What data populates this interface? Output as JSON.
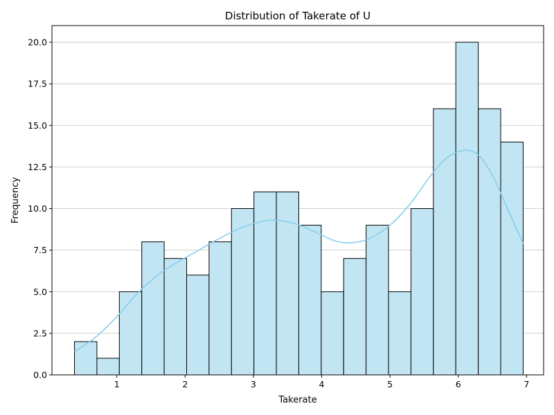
{
  "chart_data": {
    "type": "bar",
    "title": "Distribution of Takerate of U",
    "xlabel": "Takerate",
    "ylabel": "Frequency",
    "xlim": [
      0.05,
      7.25
    ],
    "ylim": [
      0,
      21
    ],
    "xticks": [
      1,
      2,
      3,
      4,
      5,
      6,
      7
    ],
    "yticks": [
      0.0,
      2.5,
      5.0,
      7.5,
      10.0,
      12.5,
      15.0,
      17.5,
      20.0
    ],
    "ytick_labels": [
      "0.0",
      "2.5",
      "5.0",
      "7.5",
      "10.0",
      "12.5",
      "15.0",
      "17.5",
      "20.0"
    ],
    "grid": "y",
    "bins": {
      "start": 0.38,
      "width": 0.3285,
      "counts": [
        2,
        1,
        5,
        8,
        7,
        6,
        8,
        10,
        11,
        11,
        9,
        5,
        7,
        9,
        5,
        10,
        16,
        20,
        16,
        14
      ]
    },
    "kde": {
      "x": [
        0.38,
        0.7,
        1.0,
        1.3,
        1.6,
        1.9,
        2.2,
        2.5,
        2.8,
        3.1,
        3.3,
        3.6,
        3.9,
        4.2,
        4.45,
        4.7,
        5.0,
        5.3,
        5.6,
        5.85,
        6.1,
        6.3,
        6.5,
        6.7,
        6.95
      ],
      "y": [
        1.4,
        2.3,
        3.5,
        4.9,
        6.0,
        6.8,
        7.5,
        8.2,
        8.8,
        9.2,
        9.3,
        9.1,
        8.6,
        8.05,
        7.95,
        8.2,
        9.0,
        10.3,
        12.0,
        13.1,
        13.5,
        13.2,
        12.0,
        10.2,
        7.9
      ]
    },
    "colors": {
      "bar_fill": "#c2e5f3",
      "bar_edge": "#000000",
      "kde_line": "#87ceeb",
      "grid": "#c0c0c0"
    }
  }
}
